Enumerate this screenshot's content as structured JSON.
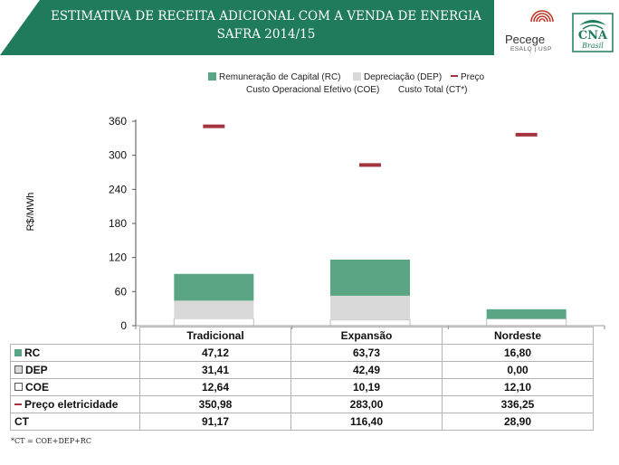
{
  "header": {
    "title_line1": "ESTIMATIVA DE RECEITA ADICIONAL COM A VENDA DE ENERGIA",
    "title_line2": "SAFRA 2014/15",
    "bg_color": "#1f7b5b"
  },
  "logos": {
    "pecege_name": "Pecege",
    "pecege_sub": "ESALQ | USP",
    "cna_name": "CNA",
    "cna_sub": "Brasil"
  },
  "chart_data": {
    "type": "bar",
    "stacked": true,
    "categories": [
      "Tradicional",
      "Expansão",
      "Nordeste"
    ],
    "ylabel": "R$/MWh",
    "ylim": [
      0,
      360
    ],
    "yticks": [
      0,
      60,
      120,
      180,
      240,
      300,
      360
    ],
    "grid": false,
    "legend_position": "top",
    "series": [
      {
        "name": "Custo Operacional Efetivo (COE)",
        "type": "bar",
        "color": "#ffffff",
        "values": [
          12.64,
          10.19,
          12.1
        ]
      },
      {
        "name": "Depreciação (DEP)",
        "type": "bar",
        "color": "#d9d9d9",
        "values": [
          31.41,
          42.49,
          0.0
        ]
      },
      {
        "name": "Remuneração de Capital (RC)",
        "type": "bar",
        "color": "#5aa584",
        "values": [
          47.12,
          63.73,
          16.8
        ]
      },
      {
        "name": "Custo Total (CT*)",
        "type": "total",
        "values": [
          91.17,
          116.4,
          28.9
        ]
      },
      {
        "name": "Preço",
        "type": "marker",
        "color": "#a3343e",
        "values": [
          350.98,
          283.0,
          336.25
        ]
      }
    ]
  },
  "legend": {
    "rc": "Remuneração de Capital (RC)",
    "dep": "Depreciação (DEP)",
    "preco": "Preço",
    "coe": "Custo Operacional Efetivo (COE)",
    "ct": "Custo Total (CT*)"
  },
  "table": {
    "headers": [
      "Tradicional",
      "Expansão",
      "Nordeste"
    ],
    "rows": [
      {
        "label": "RC",
        "values": [
          "47,12",
          "63,73",
          "16,80"
        ]
      },
      {
        "label": "DEP",
        "values": [
          "31,41",
          "42,49",
          "0,00"
        ]
      },
      {
        "label": "COE",
        "values": [
          "12,64",
          "10,19",
          "12,10"
        ]
      },
      {
        "label": "Preço eletricidade",
        "values": [
          "350,98",
          "283,00",
          "336,25"
        ]
      },
      {
        "label": "CT",
        "values": [
          "91,17",
          "116,40",
          "28,90"
        ]
      }
    ]
  },
  "footnote": "*CT = COE+DEP+RC"
}
